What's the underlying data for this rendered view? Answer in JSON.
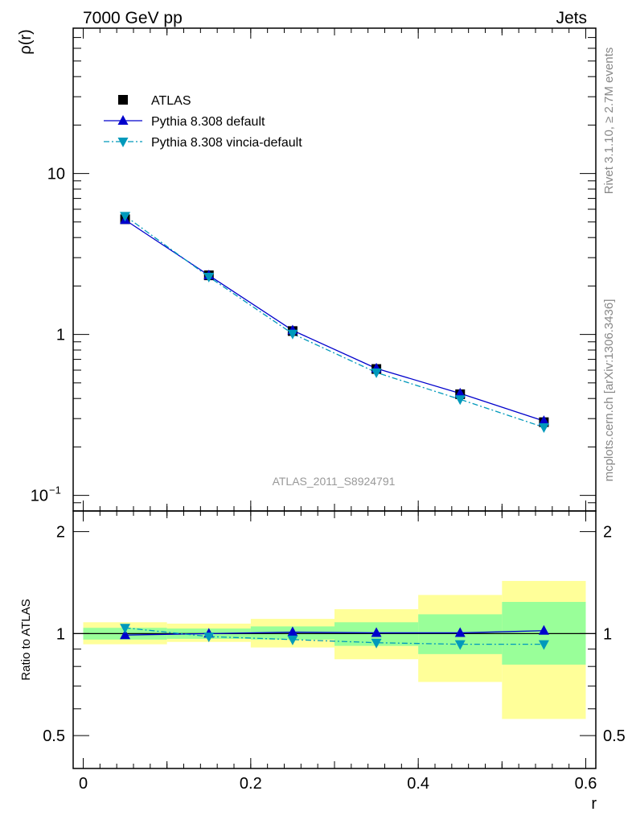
{
  "header": {
    "left": "7000 GeV pp",
    "right": "Jets"
  },
  "side_labels": {
    "rivet": "Rivet 3.1.10, ≥ 2.7M events",
    "mcplots": "mcplots.cern.ch [arXiv:1306.3436]"
  },
  "watermark": "ATLAS_2011_S8924791",
  "colors": {
    "atlas": "#000000",
    "pythia_default": "#0000cc",
    "pythia_vincia": "#0099bb",
    "band_inner": "#99ff99",
    "band_outer": "#ffff99"
  },
  "legend": [
    {
      "key": "atlas",
      "label": "ATLAS"
    },
    {
      "key": "pythia_default",
      "label": "Pythia 8.308 default"
    },
    {
      "key": "pythia_vincia",
      "label": "Pythia 8.308 vincia-default"
    }
  ],
  "chart_data": {
    "type": "line",
    "xlabel": "r",
    "ylabel": "ρ(r)",
    "ratio_ylabel": "Ratio to ATLAS",
    "xlim": [
      -0.012,
      0.612
    ],
    "ylim": [
      0.08,
      80
    ],
    "yscale": "log",
    "ratio_ylim": [
      0.4,
      2.3
    ],
    "ratio_yscale": "log",
    "x_ticks": [
      "0",
      "0.2",
      "0.4",
      "0.6"
    ],
    "x_tick_values": [
      0,
      0.2,
      0.4,
      0.6
    ],
    "y_ticks": [
      {
        "value": 10,
        "label": "10"
      },
      {
        "value": 1,
        "label": "1"
      },
      {
        "value": 0.1,
        "base": "10",
        "exp": "−1"
      }
    ],
    "ratio_y_ticks": [
      {
        "value": 2,
        "label": "2"
      },
      {
        "value": 1,
        "label": "1"
      },
      {
        "value": 0.5,
        "label": "0.5"
      }
    ],
    "x": [
      0.05,
      0.15,
      0.25,
      0.35,
      0.45,
      0.55
    ],
    "bin_edges": [
      0,
      0.1,
      0.2,
      0.3,
      0.4,
      0.5,
      0.6
    ],
    "series": [
      {
        "key": "atlas",
        "name": "ATLAS",
        "marker": "square",
        "values": [
          5.2,
          2.33,
          1.05,
          0.61,
          0.425,
          0.285
        ]
      },
      {
        "key": "pythia_default",
        "name": "Pythia 8.308 default",
        "marker": "triangle-up",
        "line": "solid",
        "values": [
          5.15,
          2.33,
          1.06,
          0.615,
          0.43,
          0.29
        ]
      },
      {
        "key": "pythia_vincia",
        "name": "Pythia 8.308 vincia-default",
        "marker": "triangle-down",
        "line": "dashdot",
        "values": [
          5.45,
          2.28,
          1.01,
          0.58,
          0.395,
          0.265
        ]
      }
    ],
    "ratio_series": [
      {
        "key": "pythia_default",
        "values": [
          0.99,
          1.0,
          1.01,
          1.005,
          1.005,
          1.02
        ]
      },
      {
        "key": "pythia_vincia",
        "values": [
          1.04,
          0.98,
          0.96,
          0.94,
          0.93,
          0.93
        ]
      }
    ],
    "ratio_bands": {
      "inner": [
        [
          0.96,
          1.04
        ],
        [
          0.965,
          1.035
        ],
        [
          0.96,
          1.05
        ],
        [
          0.92,
          1.08
        ],
        [
          0.87,
          1.14
        ],
        [
          0.81,
          1.24
        ]
      ],
      "outer": [
        [
          0.93,
          1.08
        ],
        [
          0.945,
          1.07
        ],
        [
          0.91,
          1.105
        ],
        [
          0.84,
          1.18
        ],
        [
          0.72,
          1.3
        ],
        [
          0.56,
          1.43
        ]
      ]
    }
  }
}
